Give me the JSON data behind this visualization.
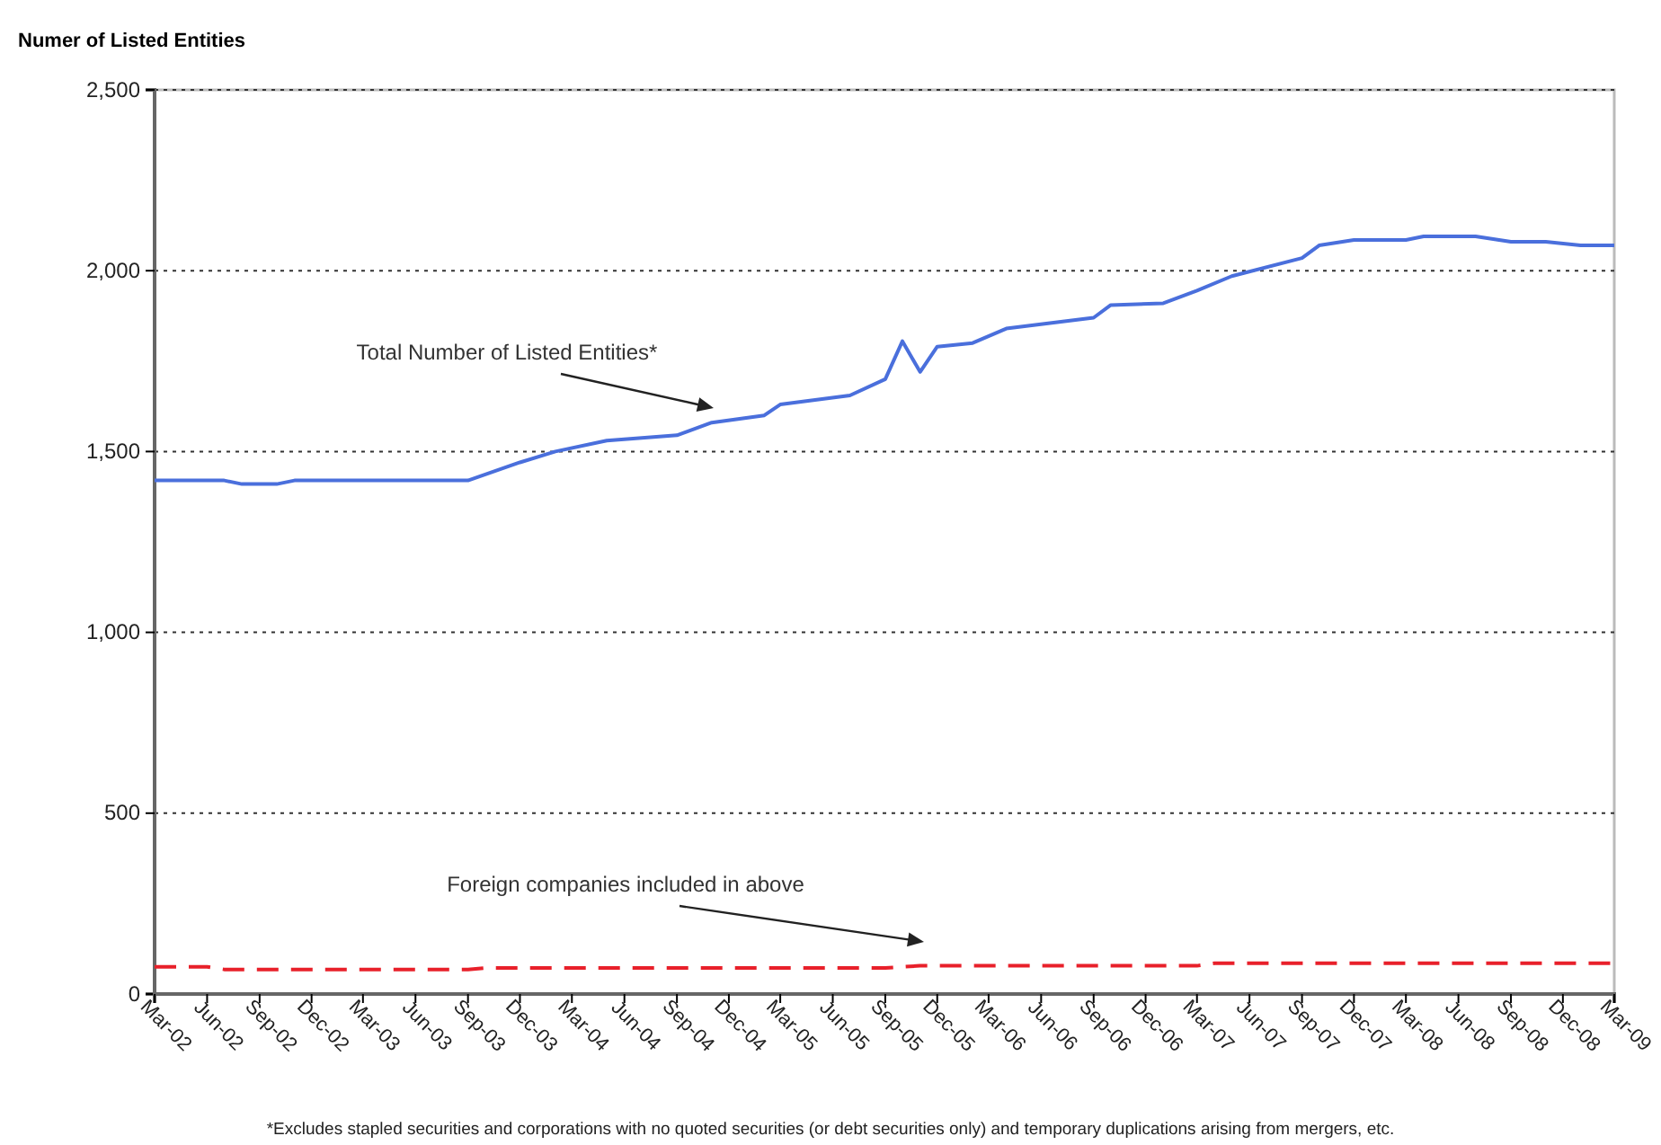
{
  "chart_data": {
    "type": "line",
    "ylabel": "Numer of Listed Entities",
    "xlim": [
      "2002-03",
      "2009-03"
    ],
    "xticks": [
      {
        "value": "2002-03",
        "label": "Mar-02"
      },
      {
        "value": "2002-06",
        "label": "Jun-02"
      },
      {
        "value": "2002-09",
        "label": "Sep-02"
      },
      {
        "value": "2002-12",
        "label": "Dec-02"
      },
      {
        "value": "2003-03",
        "label": "Mar-03"
      },
      {
        "value": "2003-06",
        "label": "Jun-03"
      },
      {
        "value": "2003-09",
        "label": "Sep-03"
      },
      {
        "value": "2003-12",
        "label": "Dec-03"
      },
      {
        "value": "2004-03",
        "label": "Mar-04"
      },
      {
        "value": "2004-06",
        "label": "Jun-04"
      },
      {
        "value": "2004-09",
        "label": "Sep-04"
      },
      {
        "value": "2004-12",
        "label": "Dec-04"
      },
      {
        "value": "2005-03",
        "label": "Mar-05"
      },
      {
        "value": "2005-06",
        "label": "Jun-05"
      },
      {
        "value": "2005-09",
        "label": "Sep-05"
      },
      {
        "value": "2005-12",
        "label": "Dec-05"
      },
      {
        "value": "2006-03",
        "label": "Mar-06"
      },
      {
        "value": "2006-06",
        "label": "Jun-06"
      },
      {
        "value": "2006-09",
        "label": "Sep-06"
      },
      {
        "value": "2006-12",
        "label": "Dec-06"
      },
      {
        "value": "2007-03",
        "label": "Mar-07"
      },
      {
        "value": "2007-06",
        "label": "Jun-07"
      },
      {
        "value": "2007-09",
        "label": "Sep-07"
      },
      {
        "value": "2007-12",
        "label": "Dec-07"
      },
      {
        "value": "2008-03",
        "label": "Mar-08"
      },
      {
        "value": "2008-06",
        "label": "Jun-08"
      },
      {
        "value": "2008-09",
        "label": "Sep-08"
      },
      {
        "value": "2008-12",
        "label": "Dec-08"
      },
      {
        "value": "2009-03",
        "label": "Mar-09"
      }
    ],
    "ylim": [
      0,
      2500
    ],
    "yticks": [
      {
        "value": 0,
        "label": "0"
      },
      {
        "value": 500,
        "label": "500"
      },
      {
        "value": 1000,
        "label": "1,000"
      },
      {
        "value": 1500,
        "label": "1,500"
      },
      {
        "value": 2000,
        "label": "2,000"
      },
      {
        "value": 2500,
        "label": "2,500"
      }
    ],
    "grid": "y",
    "series": [
      {
        "color": "#4a6fdc",
        "line_style": "solid",
        "x": [
          "2002-03",
          "2002-07",
          "2002-08",
          "2002-10",
          "2002-11",
          "2003-09",
          "2003-12",
          "2004-02",
          "2004-05",
          "2004-09",
          "2004-11",
          "2005-02",
          "2005-03",
          "2005-07",
          "2005-09",
          "2005-10",
          "2005-11",
          "2005-12",
          "2006-02",
          "2006-04",
          "2006-09",
          "2006-10",
          "2007-01",
          "2007-03",
          "2007-05",
          "2007-09",
          "2007-10",
          "2007-12",
          "2008-03",
          "2008-04",
          "2008-07",
          "2008-09",
          "2008-11",
          "2009-01",
          "2009-03"
        ],
        "values": [
          1420,
          1420,
          1410,
          1410,
          1420,
          1420,
          1470,
          1500,
          1530,
          1545,
          1580,
          1600,
          1630,
          1655,
          1700,
          1805,
          1720,
          1790,
          1800,
          1840,
          1870,
          1905,
          1910,
          1945,
          1985,
          2035,
          2070,
          2085,
          2085,
          2095,
          2095,
          2080,
          2080,
          2070,
          2070
        ]
      },
      {
        "color": "#e8202a",
        "line_style": "dashed",
        "x": [
          "2002-03",
          "2002-06",
          "2002-07",
          "2003-09",
          "2003-10",
          "2005-09",
          "2005-11",
          "2007-03",
          "2007-04",
          "2009-03"
        ],
        "values": [
          75,
          75,
          68,
          68,
          72,
          72,
          78,
          78,
          85,
          85
        ]
      }
    ],
    "annotations": [
      "Total Number of Listed Entities*",
      "Foreign companies included in above",
      "*Excludes stapled securities and corporations with no quoted securities (or debt securities only) and temporary duplications arising from mergers, etc."
    ]
  }
}
